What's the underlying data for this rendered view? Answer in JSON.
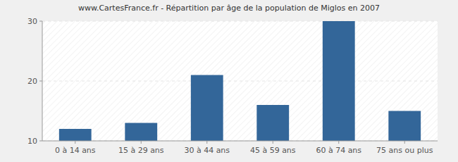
{
  "chart_data": {
    "type": "bar",
    "title": "www.CartesFrance.fr - Répartition par âge de la population de Miglos en 2007",
    "categories": [
      "0 à 14 ans",
      "15 à 29 ans",
      "30 à 44 ans",
      "45 à 59 ans",
      "60 à 74 ans",
      "75 ans ou plus"
    ],
    "values": [
      12,
      13,
      21,
      16,
      30,
      15
    ],
    "color": "#336699",
    "ylim": [
      10,
      30
    ],
    "yticks": [
      10,
      20,
      30
    ],
    "grid": true
  }
}
